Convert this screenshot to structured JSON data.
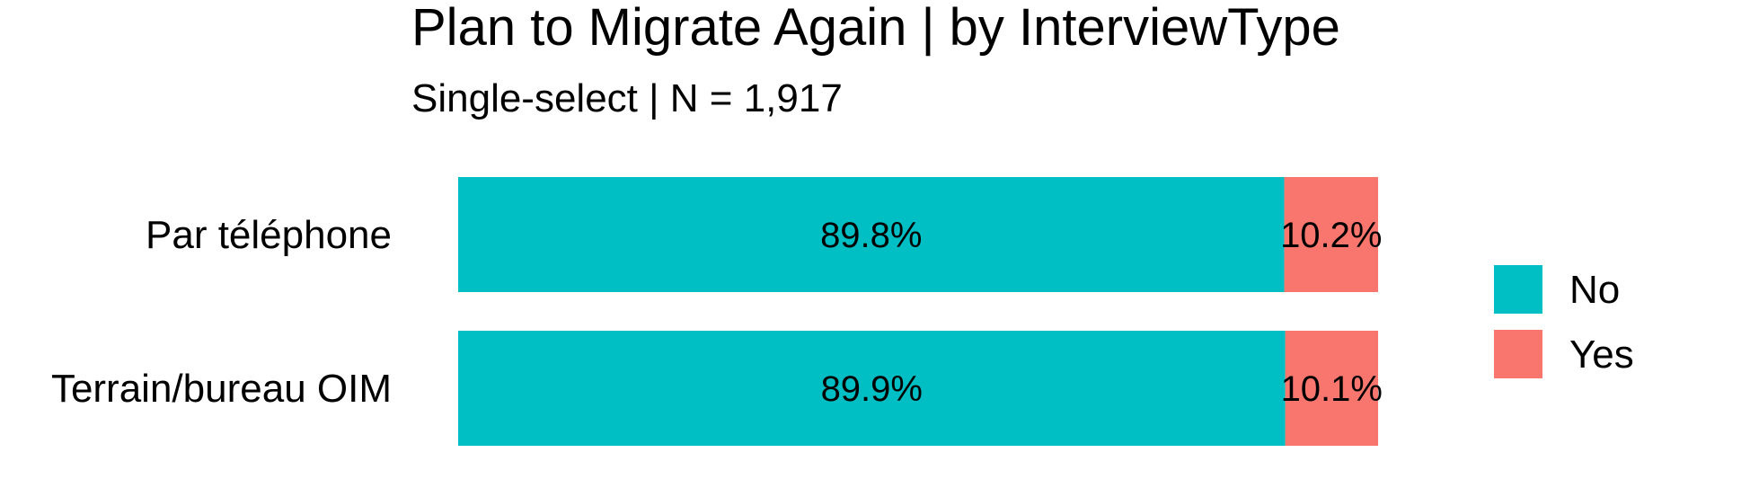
{
  "chart_data": {
    "type": "bar",
    "orientation": "horizontal",
    "stacked": true,
    "title": "Plan to Migrate Again | by InterviewType",
    "subtitle": "Single-select | N = 1,917",
    "xlabel": "",
    "ylabel": "",
    "xlim": [
      0,
      100
    ],
    "grid": false,
    "legend_position": "right",
    "categories": [
      "Par téléphone",
      "Terrain/bureau OIM"
    ],
    "series": [
      {
        "name": "No",
        "color": "#00BFC4",
        "values": [
          89.8,
          89.9
        ],
        "labels": [
          "89.8%",
          "89.9%"
        ]
      },
      {
        "name": "Yes",
        "color": "#F8766D",
        "values": [
          10.2,
          10.1
        ],
        "labels": [
          "10.2%",
          "10.1%"
        ]
      }
    ]
  }
}
